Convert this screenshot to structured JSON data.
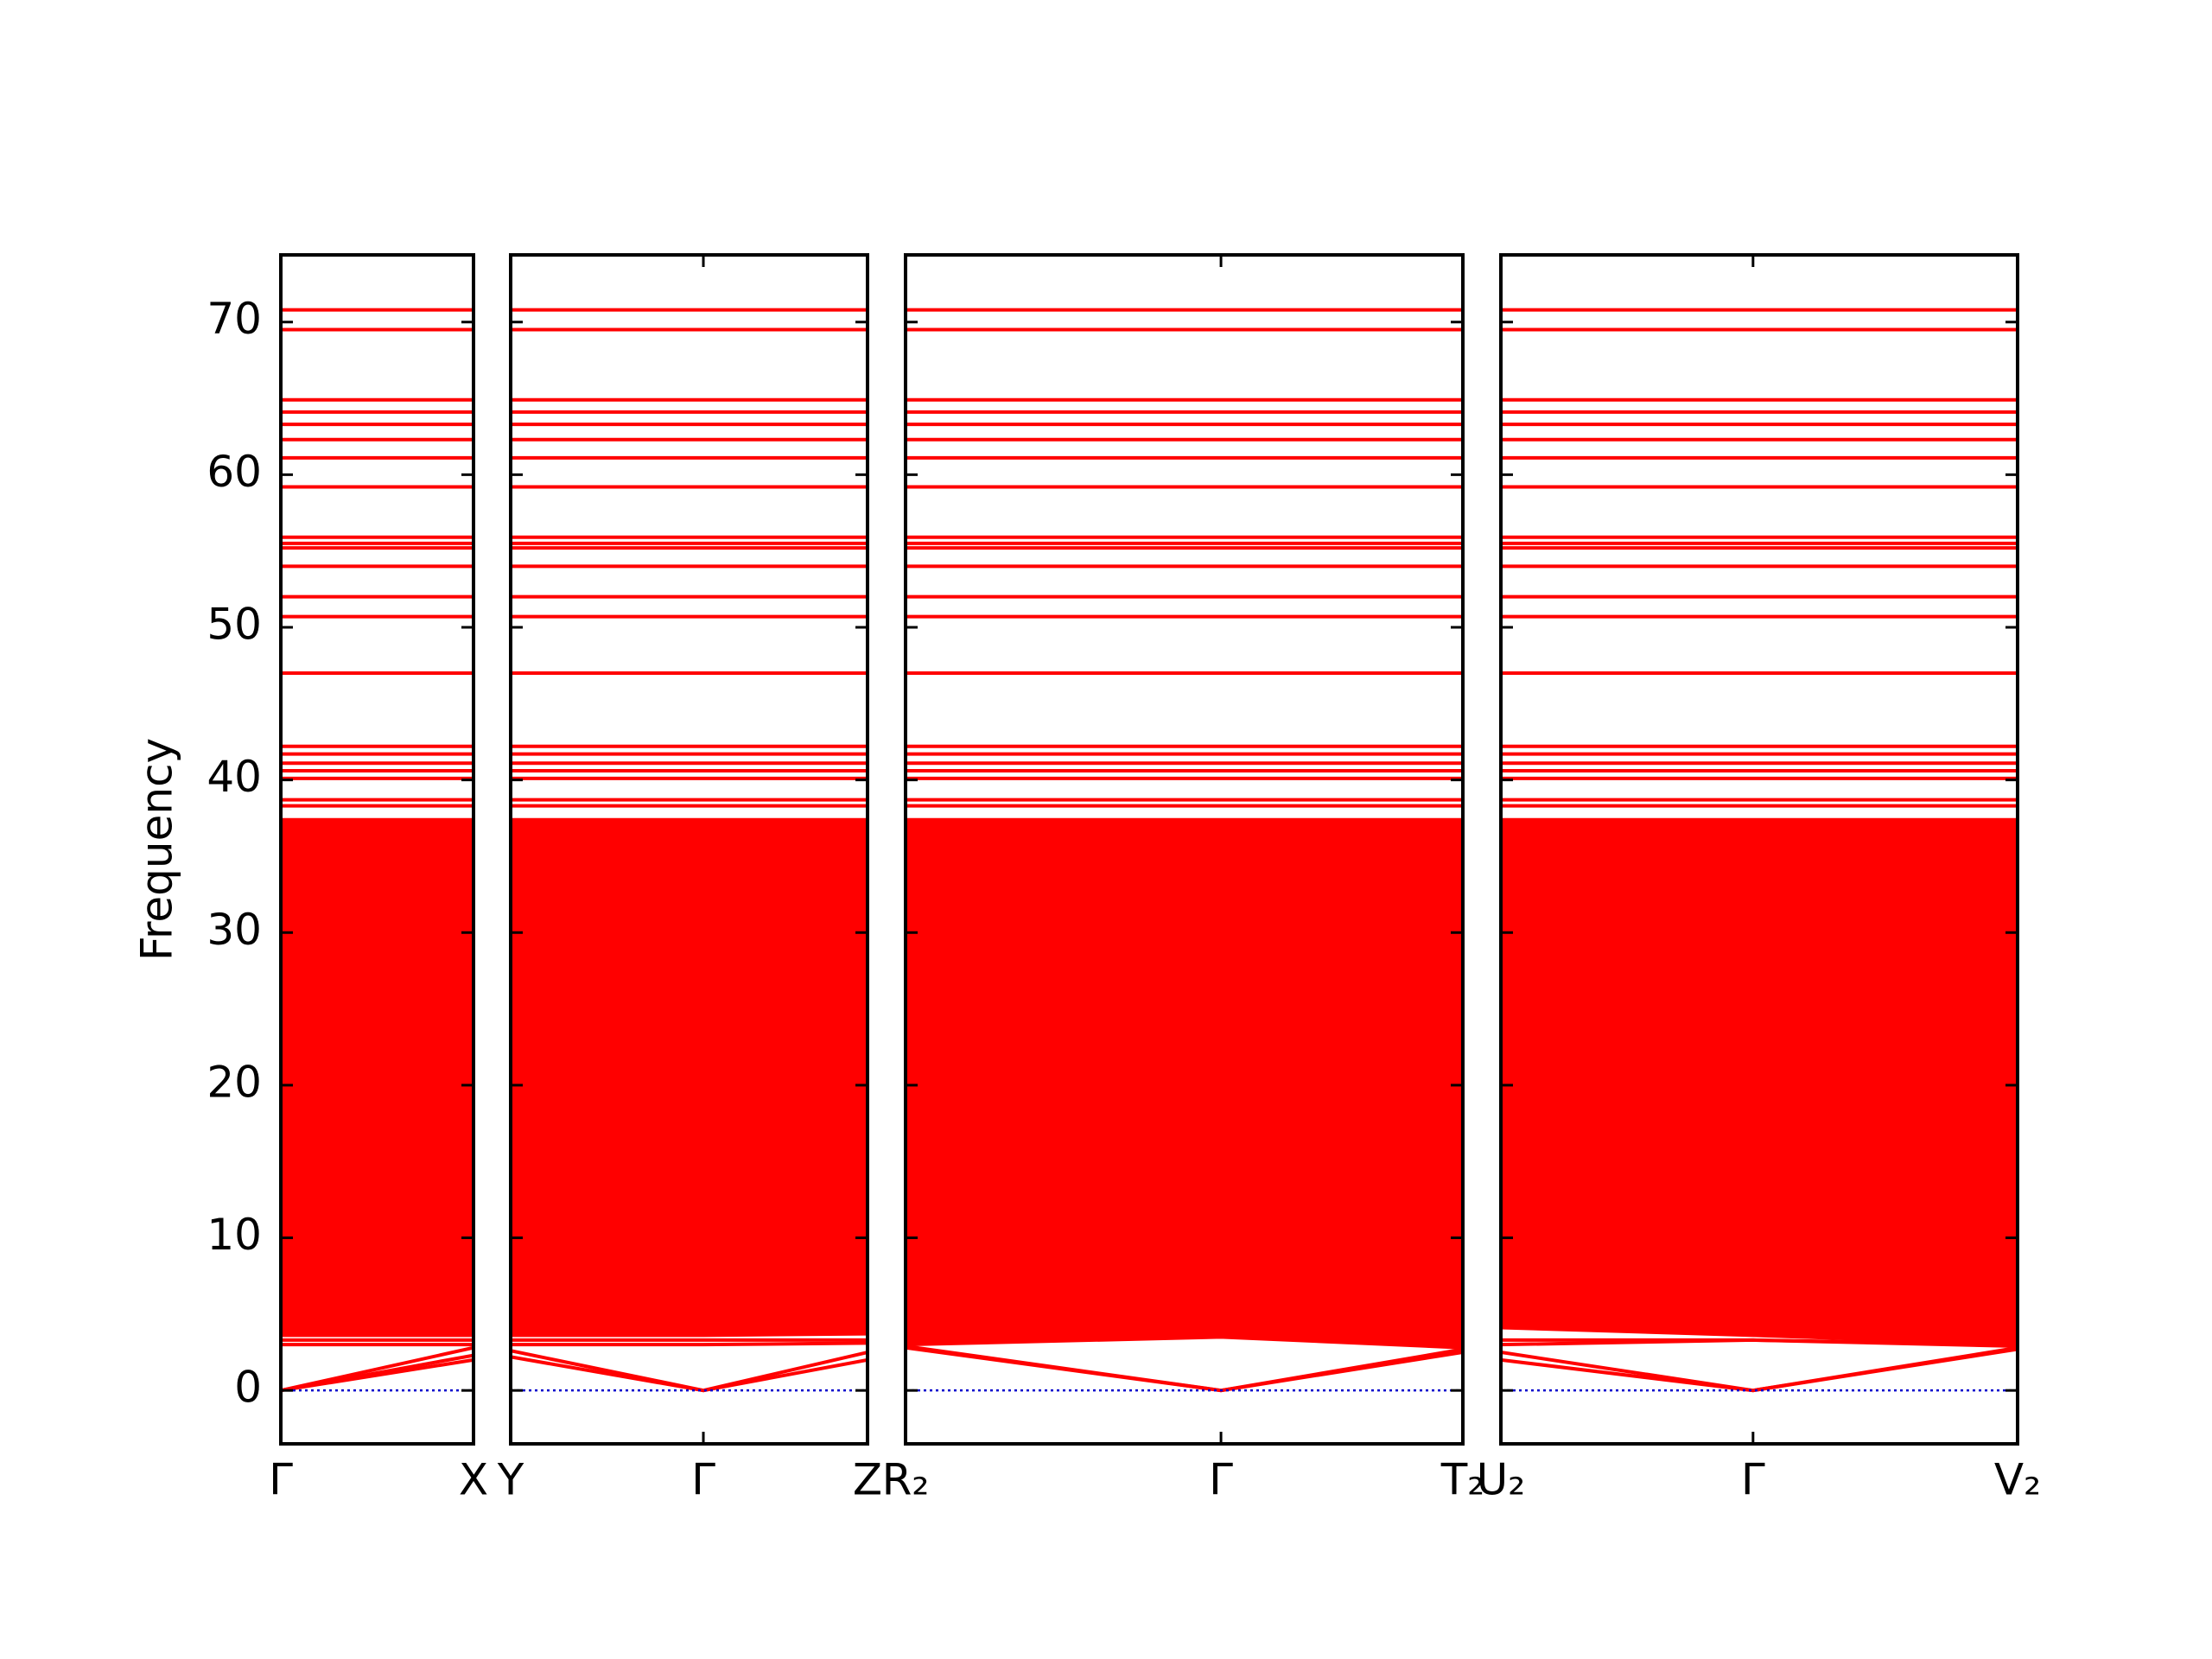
{
  "chart_data": [
    {
      "type": "line",
      "ylabel": "Frequency",
      "yticklabels": true,
      "color": "#ff0000",
      "zero_line_color": "#0000cc",
      "x": [
        0,
        1
      ],
      "xlim": [
        0,
        1
      ],
      "xticks": [
        {
          "value": 0,
          "label": "Γ"
        },
        {
          "value": 1,
          "label": "X"
        }
      ],
      "ylim": [
        -3.5,
        74.4
      ],
      "yticks": [
        0,
        10,
        20,
        30,
        40,
        50,
        60,
        70
      ],
      "fill": {
        "lower": [
          3.5,
          3.5
        ],
        "upper": [
          37.5,
          37.5
        ]
      },
      "flat_bands": [
        70.8,
        69.5,
        64.9,
        64.1,
        63.3,
        62.3,
        61.1,
        59.2,
        55.9,
        55.5,
        55.2,
        54.0,
        52.0,
        50.7,
        47.0,
        42.2,
        41.7,
        41.1,
        40.6,
        40.1,
        38.7,
        38.3
      ],
      "series": [
        {
          "values": [
            0,
            2.0
          ]
        },
        {
          "values": [
            0,
            2.3
          ]
        },
        {
          "values": [
            0,
            2.8
          ]
        },
        {
          "values": [
            3.0,
            3.0
          ]
        },
        {
          "values": [
            3.3,
            3.3
          ]
        }
      ]
    },
    {
      "type": "line",
      "color": "#ff0000",
      "zero_line_color": "#0000cc",
      "x": [
        0,
        0.54,
        1
      ],
      "xlim": [
        0,
        1
      ],
      "xticks": [
        {
          "value": 0,
          "label": "Y"
        },
        {
          "value": 0.54,
          "label": "Γ"
        },
        {
          "value": 1,
          "label": "Z"
        }
      ],
      "ylim": [
        -3.5,
        74.4
      ],
      "yticks": [
        0,
        10,
        20,
        30,
        40,
        50,
        60,
        70
      ],
      "fill": {
        "lower": [
          3.5,
          3.5,
          3.6
        ],
        "upper": [
          37.5,
          37.5,
          37.5
        ]
      },
      "flat_bands": [
        70.8,
        69.5,
        64.9,
        64.1,
        63.3,
        62.3,
        61.1,
        59.2,
        55.9,
        55.5,
        55.2,
        54.0,
        52.0,
        50.7,
        47.0,
        42.2,
        41.7,
        41.1,
        40.6,
        40.1,
        38.7,
        38.3
      ],
      "series": [
        {
          "values": [
            2.2,
            0,
            2.0
          ]
        },
        {
          "values": [
            2.6,
            0,
            2.5
          ]
        },
        {
          "values": [
            3.0,
            3.0,
            3.1
          ]
        },
        {
          "values": [
            3.3,
            3.3,
            3.3
          ]
        }
      ]
    },
    {
      "type": "line",
      "color": "#ff0000",
      "zero_line_color": "#0000cc",
      "x": [
        0,
        0.566,
        1
      ],
      "xlim": [
        0,
        1
      ],
      "xticks": [
        {
          "value": 0,
          "label": "R₂"
        },
        {
          "value": 0.566,
          "label": "Γ"
        },
        {
          "value": 1,
          "label": "T₂"
        }
      ],
      "ylim": [
        -3.5,
        74.4
      ],
      "yticks": [
        0,
        10,
        20,
        30,
        40,
        50,
        60,
        70
      ],
      "fill": {
        "lower": [
          2.9,
          3.5,
          2.7
        ],
        "upper": [
          37.5,
          37.5,
          37.5
        ]
      },
      "flat_bands": [
        70.8,
        69.5,
        64.9,
        64.1,
        63.3,
        62.3,
        61.1,
        59.2,
        55.9,
        55.5,
        55.2,
        54.0,
        52.0,
        50.7,
        47.0,
        42.2,
        41.7,
        41.1,
        40.6,
        40.1,
        38.7,
        38.3
      ],
      "series": [
        {
          "values": [
            2.8,
            0,
            2.5
          ]
        },
        {
          "values": [
            2.9,
            0,
            2.7
          ]
        },
        {
          "values": [
            3.0,
            3.5,
            2.8
          ]
        }
      ]
    },
    {
      "type": "line",
      "color": "#ff0000",
      "zero_line_color": "#0000cc",
      "x": [
        0,
        0.488,
        1
      ],
      "xlim": [
        0,
        1
      ],
      "xticks": [
        {
          "value": 0,
          "label": "U₂"
        },
        {
          "value": 0.488,
          "label": "Γ"
        },
        {
          "value": 1,
          "label": "V₂"
        }
      ],
      "ylim": [
        -3.5,
        74.4
      ],
      "yticks": [
        0,
        10,
        20,
        30,
        40,
        50,
        60,
        70
      ],
      "fill": {
        "lower": [
          4.0,
          3.5,
          2.9
        ],
        "upper": [
          37.5,
          37.5,
          37.5
        ]
      },
      "flat_bands": [
        70.8,
        69.5,
        64.9,
        64.1,
        63.3,
        62.3,
        61.1,
        59.2,
        55.9,
        55.5,
        55.2,
        54.0,
        52.0,
        50.7,
        47.0,
        42.2,
        41.7,
        41.1,
        40.6,
        40.1,
        38.7,
        38.3
      ],
      "series": [
        {
          "values": [
            2.0,
            0,
            2.7
          ]
        },
        {
          "values": [
            2.5,
            0,
            2.8
          ]
        },
        {
          "values": [
            3.0,
            3.3,
            2.9
          ]
        },
        {
          "values": [
            3.3,
            3.3,
            3.0
          ]
        }
      ]
    }
  ]
}
